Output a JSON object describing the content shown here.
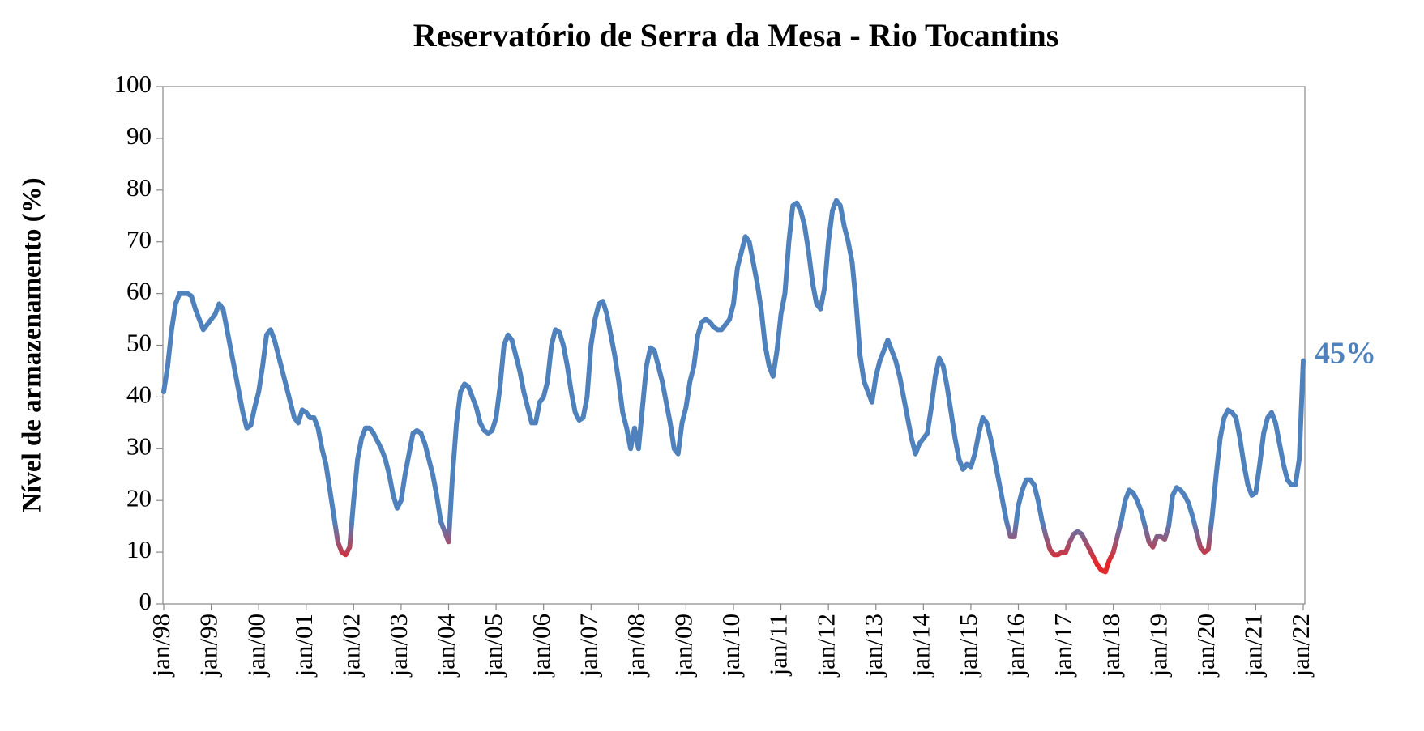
{
  "chart_data": {
    "type": "line",
    "title": "Reservatório de Serra da Mesa - Rio Tocantins",
    "y_label": "Nível de armazenamento (%)",
    "annotation": "45%",
    "categories": [
      "jan/98",
      null,
      null,
      null,
      null,
      null,
      null,
      null,
      null,
      null,
      null,
      null,
      "jan/99",
      null,
      null,
      null,
      null,
      null,
      null,
      null,
      null,
      null,
      null,
      null,
      "jan/00",
      null,
      null,
      null,
      null,
      null,
      null,
      null,
      null,
      null,
      null,
      null,
      "jan/01",
      null,
      null,
      null,
      null,
      null,
      null,
      null,
      null,
      null,
      null,
      null,
      "jan/02",
      null,
      null,
      null,
      null,
      null,
      null,
      null,
      null,
      null,
      null,
      null,
      "jan/03",
      null,
      null,
      null,
      null,
      null,
      null,
      null,
      null,
      null,
      null,
      null,
      "jan/04",
      null,
      null,
      null,
      null,
      null,
      null,
      null,
      null,
      null,
      null,
      null,
      "jan/05",
      null,
      null,
      null,
      null,
      null,
      null,
      null,
      null,
      null,
      null,
      null,
      "jan/06",
      null,
      null,
      null,
      null,
      null,
      null,
      null,
      null,
      null,
      null,
      null,
      "jan/07",
      null,
      null,
      null,
      null,
      null,
      null,
      null,
      null,
      null,
      null,
      null,
      "jan/08",
      null,
      null,
      null,
      null,
      null,
      null,
      null,
      null,
      null,
      null,
      null,
      "jan/09",
      null,
      null,
      null,
      null,
      null,
      null,
      null,
      null,
      null,
      null,
      null,
      "jan/10",
      null,
      null,
      null,
      null,
      null,
      null,
      null,
      null,
      null,
      null,
      null,
      "jan/11",
      null,
      null,
      null,
      null,
      null,
      null,
      null,
      null,
      null,
      null,
      null,
      "jan/12",
      null,
      null,
      null,
      null,
      null,
      null,
      null,
      null,
      null,
      null,
      null,
      "jan/13",
      null,
      null,
      null,
      null,
      null,
      null,
      null,
      null,
      null,
      null,
      null,
      "jan/14",
      null,
      null,
      null,
      null,
      null,
      null,
      null,
      null,
      null,
      null,
      null,
      "jan/15",
      null,
      null,
      null,
      null,
      null,
      null,
      null,
      null,
      null,
      null,
      null,
      "jan/16",
      null,
      null,
      null,
      null,
      null,
      null,
      null,
      null,
      null,
      null,
      null,
      "jan/17",
      null,
      null,
      null,
      null,
      null,
      null,
      null,
      null,
      null,
      null,
      null,
      "jan/18",
      null,
      null,
      null,
      null,
      null,
      null,
      null,
      null,
      null,
      null,
      null,
      "jan/19",
      null,
      null,
      null,
      null,
      null,
      null,
      null,
      null,
      null,
      null,
      null,
      "jan/20",
      null,
      null,
      null,
      null,
      null,
      null,
      null,
      null,
      null,
      null,
      null,
      "jan/21",
      null,
      null,
      null,
      null,
      null,
      null,
      null,
      null,
      null,
      null,
      null,
      "jan/22"
    ],
    "series": [
      {
        "name": "Nível de armazenamento",
        "color": "#4f81bd",
        "low_color": "#e3262a",
        "values": [
          41,
          46,
          53,
          58,
          60,
          60,
          60,
          59.5,
          57,
          55,
          53,
          54,
          55,
          56,
          58,
          57,
          53,
          49,
          45,
          41,
          37,
          34,
          34.5,
          38,
          41,
          46,
          52,
          53,
          51,
          48,
          45,
          42,
          39,
          36,
          35,
          37.5,
          37,
          36,
          36,
          34,
          30,
          27,
          22,
          17,
          12,
          10,
          9.5,
          11,
          20,
          28,
          32,
          34,
          34,
          33,
          31.5,
          30,
          28,
          25,
          21,
          18.5,
          20,
          25,
          29,
          33,
          33.5,
          33,
          31,
          28,
          25,
          21,
          16,
          14,
          12,
          25,
          35,
          41,
          42.5,
          42,
          40,
          38,
          35,
          33.5,
          33,
          33.5,
          36,
          42,
          50,
          52,
          51,
          48,
          45,
          41,
          38,
          35,
          35,
          39,
          40,
          43,
          50,
          53,
          52.5,
          50,
          46,
          41,
          37,
          35.5,
          36,
          40,
          50,
          55,
          58,
          58.5,
          56,
          52,
          48,
          43,
          37,
          34,
          30,
          34,
          30,
          38,
          46,
          49.5,
          49,
          46,
          43,
          39,
          35,
          30,
          29,
          35,
          38,
          43,
          46,
          52,
          54.5,
          55,
          54.5,
          53.5,
          53,
          53,
          54,
          55,
          58,
          65,
          68,
          71,
          70,
          66,
          62,
          57,
          50,
          46,
          44,
          49,
          56,
          60,
          70,
          77,
          77.5,
          76,
          73,
          68,
          62,
          58,
          57,
          61,
          70,
          76,
          78,
          77,
          73,
          70,
          66,
          58,
          48,
          43,
          41,
          39,
          44,
          47,
          49,
          51,
          49,
          47,
          44,
          40,
          36,
          32,
          29,
          31,
          32,
          33,
          38,
          44,
          47.5,
          46,
          42,
          37,
          32,
          28,
          26,
          27,
          26.5,
          29,
          33,
          36,
          35,
          32,
          28,
          24,
          20,
          16,
          13,
          13,
          19,
          22,
          24,
          24,
          23,
          20,
          16,
          13,
          10.5,
          9.5,
          9.5,
          10,
          10,
          12,
          13.5,
          14,
          13.5,
          12,
          10.5,
          9,
          7.5,
          6.5,
          6.2,
          8.5,
          10,
          13,
          16,
          20,
          22,
          21.5,
          20,
          18,
          15,
          12,
          11,
          13,
          13,
          12.5,
          15,
          21,
          22.5,
          22,
          21,
          19.5,
          17,
          14,
          11,
          10,
          10.5,
          17,
          25,
          32,
          36,
          37.5,
          37,
          36,
          32,
          27,
          23,
          21,
          21.5,
          27,
          33,
          36,
          37,
          35,
          31,
          27,
          24,
          23,
          23,
          28,
          47
        ]
      }
    ],
    "ylim": [
      0,
      100
    ],
    "yticks": [
      0,
      10,
      20,
      30,
      40,
      50,
      60,
      70,
      80,
      90,
      100
    ]
  }
}
